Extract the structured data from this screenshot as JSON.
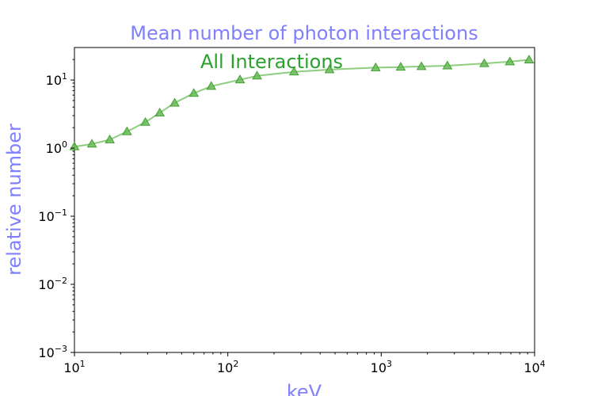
{
  "chart_data": {
    "type": "line",
    "title": "Mean number of photon interactions",
    "xlabel": "keV",
    "ylabel": "relative number",
    "xscale": "log",
    "yscale": "log",
    "xlim": [
      10,
      10000
    ],
    "ylim": [
      0.001,
      30
    ],
    "grid": false,
    "x_ticks": [
      {
        "value": 10,
        "base": "10",
        "exp": "1"
      },
      {
        "value": 100,
        "base": "10",
        "exp": "2"
      },
      {
        "value": 1000,
        "base": "10",
        "exp": "3"
      },
      {
        "value": 10000,
        "base": "10",
        "exp": "4"
      }
    ],
    "y_ticks": [
      {
        "value": 0.001,
        "base": "10",
        "exp": "−3"
      },
      {
        "value": 0.01,
        "base": "10",
        "exp": "−2"
      },
      {
        "value": 0.1,
        "base": "10",
        "exp": "−1"
      },
      {
        "value": 1,
        "base": "10",
        "exp": "0"
      },
      {
        "value": 10,
        "base": "10",
        "exp": "1"
      }
    ],
    "annotations": [
      {
        "text": "All Interactions",
        "color": "#2ca02c"
      }
    ],
    "series": [
      {
        "marker": "triangle",
        "line_color": "#8fcd7f",
        "marker_color": "#6ab85a",
        "marker_edge": "#3fa02c",
        "x": [
          10,
          13,
          17,
          22,
          29,
          36,
          45,
          60,
          78,
          120,
          155,
          270,
          460,
          920,
          1340,
          1830,
          2700,
          4700,
          6900,
          9200
        ],
        "y": [
          1.05,
          1.15,
          1.33,
          1.75,
          2.4,
          3.3,
          4.6,
          6.4,
          8.1,
          10.1,
          11.5,
          13.2,
          14.2,
          15.2,
          15.5,
          15.8,
          16.2,
          17.5,
          18.6,
          19.8
        ]
      }
    ]
  }
}
